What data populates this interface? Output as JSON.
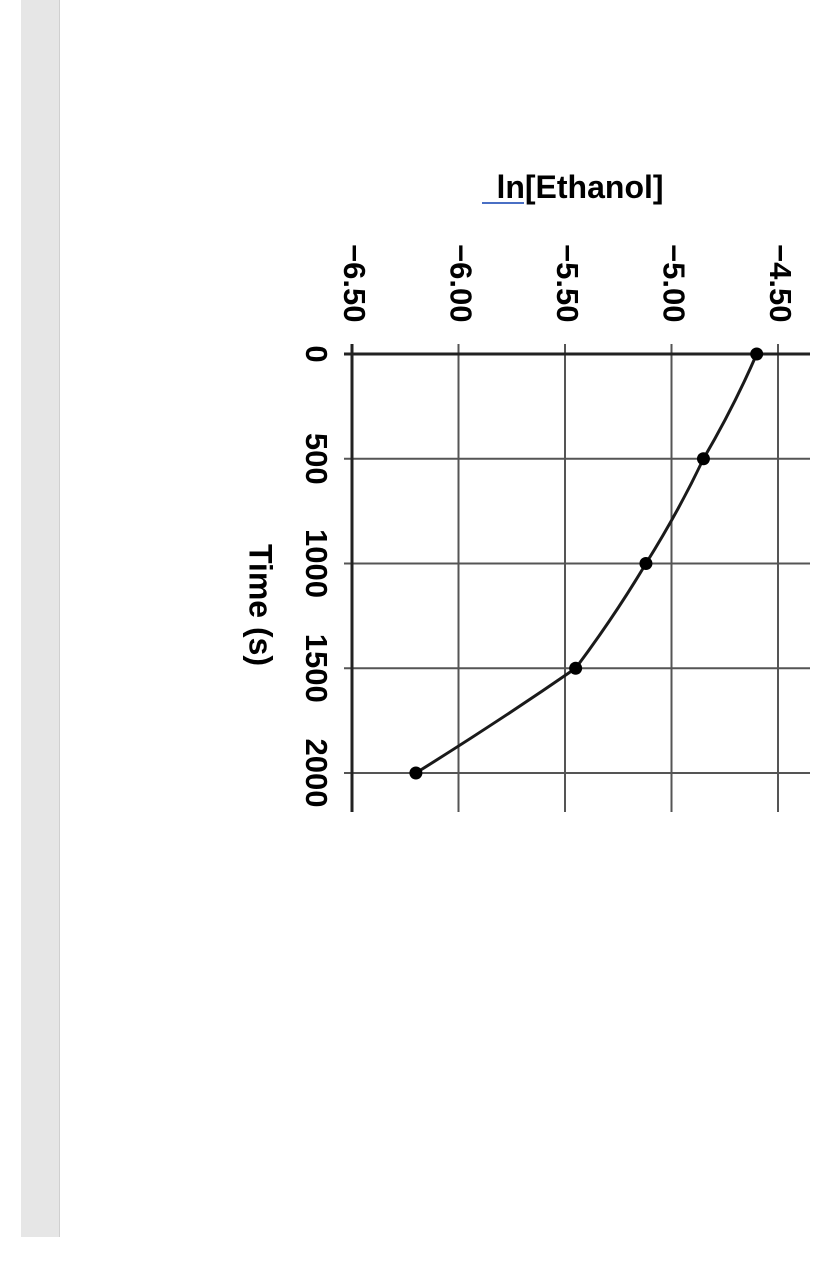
{
  "chart_data": {
    "type": "line",
    "title": "",
    "xlabel": "Time (s)",
    "ylabel": "ln[Ethanol]",
    "x_ticks": [
      "0",
      "500",
      "1000",
      "1500",
      "2000"
    ],
    "y_ticks": [
      "-6.50",
      "-6.00",
      "-5.50",
      "-5.00",
      "-4.50"
    ],
    "xlim": [
      0,
      2000
    ],
    "ylim": [
      -6.5,
      -4.5
    ],
    "grid": true,
    "legend": "none",
    "series": [
      {
        "x": [
          0,
          500,
          1000,
          1500,
          2000
        ],
        "y": [
          -4.6,
          -4.85,
          -5.12,
          -5.45,
          -6.2
        ],
        "line_color": "#1a1a1a",
        "marker_color": "#000000"
      }
    ]
  }
}
